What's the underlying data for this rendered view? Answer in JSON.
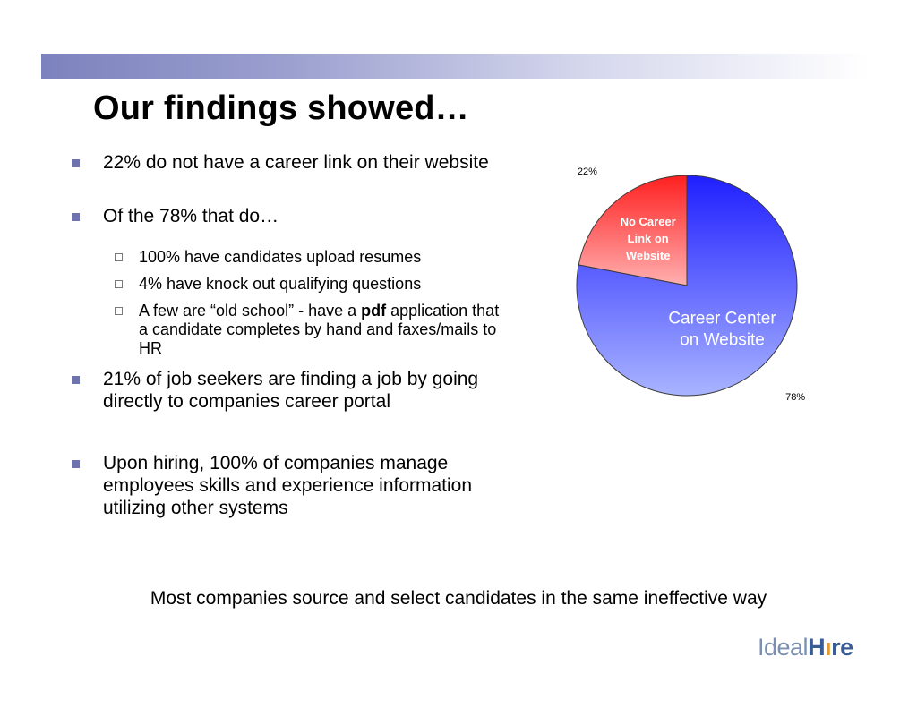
{
  "slide": {
    "title": "Our findings showed…",
    "bullets": [
      {
        "lines": [
          "22% do not have a career link on their website"
        ]
      },
      {
        "lines": [
          "Of the 78% that do…"
        ]
      },
      {
        "lines": [
          "21% of job seekers are finding a job by going",
          "directly to companies career portal"
        ]
      },
      {
        "lines": [
          "Upon hiring, 100% of companies manage",
          "employees skills and experience information",
          "utilizing other systems"
        ]
      }
    ],
    "sub_bullets": [
      {
        "lines": [
          "100% have candidates upload resumes"
        ]
      },
      {
        "lines": [
          "4% have knock out qualifying questions"
        ]
      },
      {
        "line1_before": "A few are “old school” - have a ",
        "line1_bold": "pdf",
        "line1_after": " application that",
        "line2": "a candidate completes by hand and faxes/mails to",
        "line3": "HR"
      }
    ],
    "footer": "Most companies source and select candidates in the same ineffective way",
    "logo": {
      "part1": "Ideal",
      "part2": "H",
      "part3": "re"
    }
  },
  "chart_data": {
    "type": "pie",
    "title": "",
    "slices": [
      {
        "label_lines": [
          "No Career",
          "Link on",
          "Website"
        ],
        "value": 22,
        "value_label": "22%",
        "color": "#ff2a2a"
      },
      {
        "label_lines": [
          "Career Center",
          "on Website"
        ],
        "value": 78,
        "value_label": "78%",
        "color": "#2b2bff"
      }
    ]
  }
}
